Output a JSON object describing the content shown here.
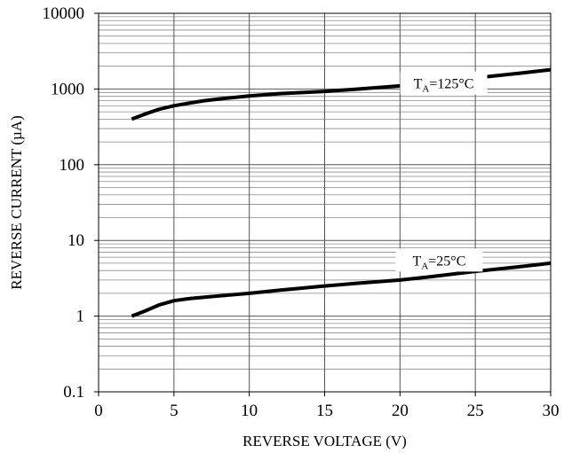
{
  "chart_data": {
    "type": "line",
    "xlabel": "REVERSE VOLTAGE (V)",
    "ylabel": "REVERSE CURRENT (µA)",
    "xlim": [
      0,
      30
    ],
    "ylim": [
      0.1,
      10000
    ],
    "yscale": "log",
    "grid": true,
    "x_ticks": [
      "0",
      "5",
      "10",
      "15",
      "20",
      "25",
      "30"
    ],
    "y_ticks": [
      "0.1",
      "1",
      "10",
      "100",
      "1000",
      "10000"
    ],
    "series": [
      {
        "name": "TA=125°C",
        "label": {
          "main": "T",
          "sub": "A",
          "rest": "=125°C"
        },
        "x": [
          2.2,
          3,
          4,
          5,
          6,
          7,
          8,
          10,
          12,
          15,
          17,
          20,
          22,
          25,
          28,
          30
        ],
        "y": [
          400,
          460,
          540,
          600,
          650,
          700,
          740,
          810,
          870,
          930,
          990,
          1100,
          1220,
          1400,
          1620,
          1800
        ]
      },
      {
        "name": "TA=25°C",
        "label": {
          "main": "T",
          "sub": "A",
          "rest": "=25°C"
        },
        "x": [
          2.2,
          3,
          4,
          5,
          6,
          8,
          10,
          12,
          15,
          17,
          20,
          22,
          25,
          28,
          30
        ],
        "y": [
          1.0,
          1.15,
          1.4,
          1.6,
          1.7,
          1.85,
          2.0,
          2.2,
          2.5,
          2.7,
          3.0,
          3.3,
          3.9,
          4.5,
          5.0
        ]
      }
    ]
  }
}
